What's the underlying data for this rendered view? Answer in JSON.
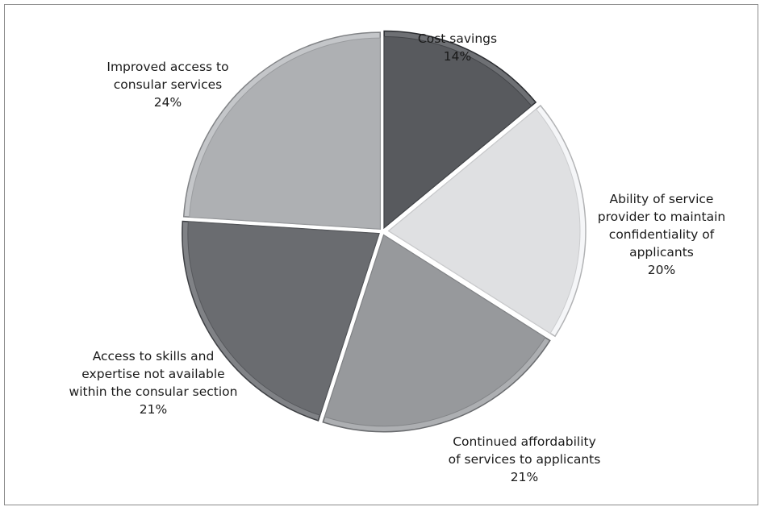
{
  "chart_data": {
    "type": "pie",
    "start_angle_deg": 0,
    "direction": "clockwise",
    "slices": [
      {
        "label_lines": [
          "Cost savings"
        ],
        "percent_label": "14%",
        "value": 14,
        "color": "#585a5e"
      },
      {
        "label_lines": [
          "Ability of service",
          "provider to maintain",
          "confidentiality of",
          "applicants"
        ],
        "percent_label": "20%",
        "value": 20,
        "color": "#dfe0e2"
      },
      {
        "label_lines": [
          "Continued affordability",
          "of services to applicants"
        ],
        "percent_label": "21%",
        "value": 21,
        "color": "#97999c"
      },
      {
        "label_lines": [
          "Access to skills and",
          "expertise not available",
          "within the consular section"
        ],
        "percent_label": "21%",
        "value": 21,
        "color": "#6a6c70"
      },
      {
        "label_lines": [
          "Improved access to",
          "consular services"
        ],
        "percent_label": "24%",
        "value": 24,
        "color": "#aeb0b3"
      }
    ]
  }
}
